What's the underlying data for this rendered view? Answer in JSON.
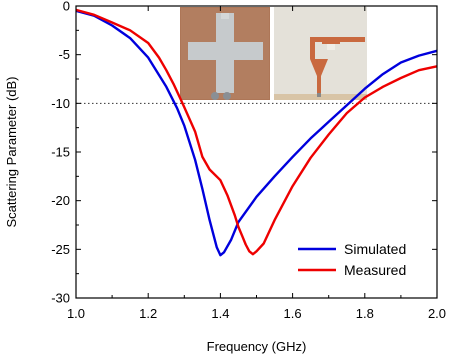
{
  "chart_data": {
    "type": "line",
    "title": "",
    "xlabel": "Frequency (GHz)",
    "ylabel": "Scattering Parameter (dB)",
    "xlim": [
      1.0,
      2.0
    ],
    "ylim": [
      -30,
      0
    ],
    "x_ticks": [
      "1.0",
      "1.2",
      "1.4",
      "1.6",
      "1.8",
      "2.0"
    ],
    "y_ticks": [
      "0",
      "-5",
      "-10",
      "-15",
      "-20",
      "-25",
      "-30"
    ],
    "reference_line": {
      "y": -10,
      "style": "dotted",
      "color": "#333333"
    },
    "legend_position": "bottom-right",
    "series": [
      {
        "name": "Simulated",
        "color": "#0000dd",
        "x": [
          1.0,
          1.05,
          1.1,
          1.15,
          1.2,
          1.25,
          1.28,
          1.3,
          1.33,
          1.35,
          1.37,
          1.39,
          1.4,
          1.41,
          1.43,
          1.45,
          1.5,
          1.55,
          1.6,
          1.65,
          1.7,
          1.75,
          1.8,
          1.85,
          1.9,
          1.95,
          2.0
        ],
        "y": [
          -0.5,
          -1.0,
          -2.0,
          -3.3,
          -5.3,
          -8.3,
          -10.5,
          -12.3,
          -15.8,
          -18.8,
          -22.0,
          -24.8,
          -25.6,
          -25.3,
          -24.0,
          -22.2,
          -19.6,
          -17.5,
          -15.5,
          -13.6,
          -11.9,
          -10.2,
          -8.5,
          -7.0,
          -5.8,
          -5.1,
          -4.6
        ]
      },
      {
        "name": "Measured",
        "color": "#ee0000",
        "x": [
          1.0,
          1.05,
          1.1,
          1.15,
          1.2,
          1.23,
          1.25,
          1.27,
          1.29,
          1.3,
          1.33,
          1.35,
          1.37,
          1.4,
          1.42,
          1.44,
          1.45,
          1.46,
          1.47,
          1.48,
          1.49,
          1.5,
          1.52,
          1.55,
          1.6,
          1.65,
          1.7,
          1.75,
          1.8,
          1.85,
          1.9,
          1.95,
          2.0
        ],
        "y": [
          -0.4,
          -0.9,
          -1.7,
          -2.5,
          -3.8,
          -5.3,
          -6.6,
          -8.0,
          -9.6,
          -10.4,
          -12.9,
          -15.5,
          -16.8,
          -17.9,
          -19.5,
          -21.5,
          -22.7,
          -23.6,
          -24.5,
          -25.2,
          -25.5,
          -25.2,
          -24.4,
          -22.0,
          -18.5,
          -15.6,
          -13.2,
          -11.0,
          -9.4,
          -8.3,
          -7.4,
          -6.6,
          -6.2
        ]
      }
    ]
  },
  "inset": {
    "left_photo": {
      "icon": "cross-antenna-photo",
      "background": "#b07a5c",
      "patch": "#c8ccce"
    },
    "right_photo": {
      "icon": "l-antenna-photo",
      "background": "#e6e3dc",
      "trace": "#c96a45"
    }
  }
}
